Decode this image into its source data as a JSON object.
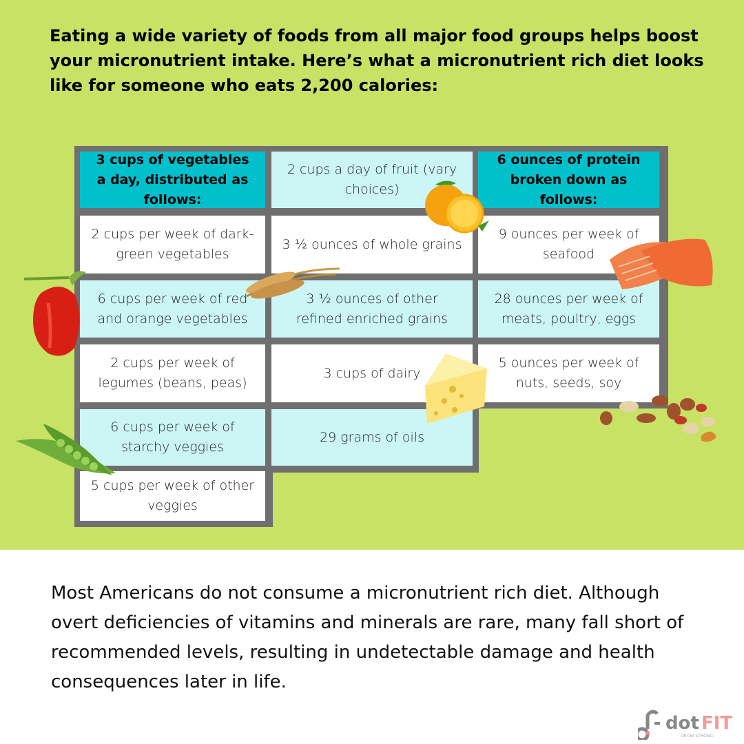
{
  "intro": "Eating a wide variety of foods from all major food groups helps boost your micronutrient intake. Here’s what a micronutrient rich diet looks like for someone who eats 2,200 calories:",
  "table": {
    "vegetables": [
      "3 cups of vegetables a day, distributed as follows:",
      "2 cups per week of dark-green vegetables",
      "6 cups per week of red and orange vegetables",
      "2 cups per week of legumes (beans, peas)",
      "6 cups per week of starchy veggies",
      "5 cups per week of other veggies"
    ],
    "fruit_grains_dairy": [
      "2 cups a day of fruit (vary choices)",
      "3 ½ ounces of whole grains",
      "3 ½ ounces of other refined enriched grains",
      "3 cups of dairy",
      "29 grams of oils"
    ],
    "protein": [
      "6 ounces of protein broken down as follows:",
      "9 ounces per week of seafood",
      "28 ounces per week of meats, poultry, eggs",
      "5 ounces per week of nuts, seeds, soy"
    ]
  },
  "outro": "Most Americans do not consume a micronutrient rich diet. Although overt deficiencies of vitamins and minerals are rare, many fall short of recommended levels, resulting in undetectable damage and health consequences later in life.",
  "logo": {
    "brand": "dotFIT",
    "tagline": "GROW STRONG."
  },
  "colors": {
    "background": "#c8e265",
    "header_cell": "#00c0cc",
    "light_cell": "#ccf6f5",
    "grid": "#6f6f6f"
  },
  "icons": [
    "bell-pepper",
    "wheat",
    "orange",
    "salmon",
    "cheese",
    "peas",
    "nuts"
  ]
}
